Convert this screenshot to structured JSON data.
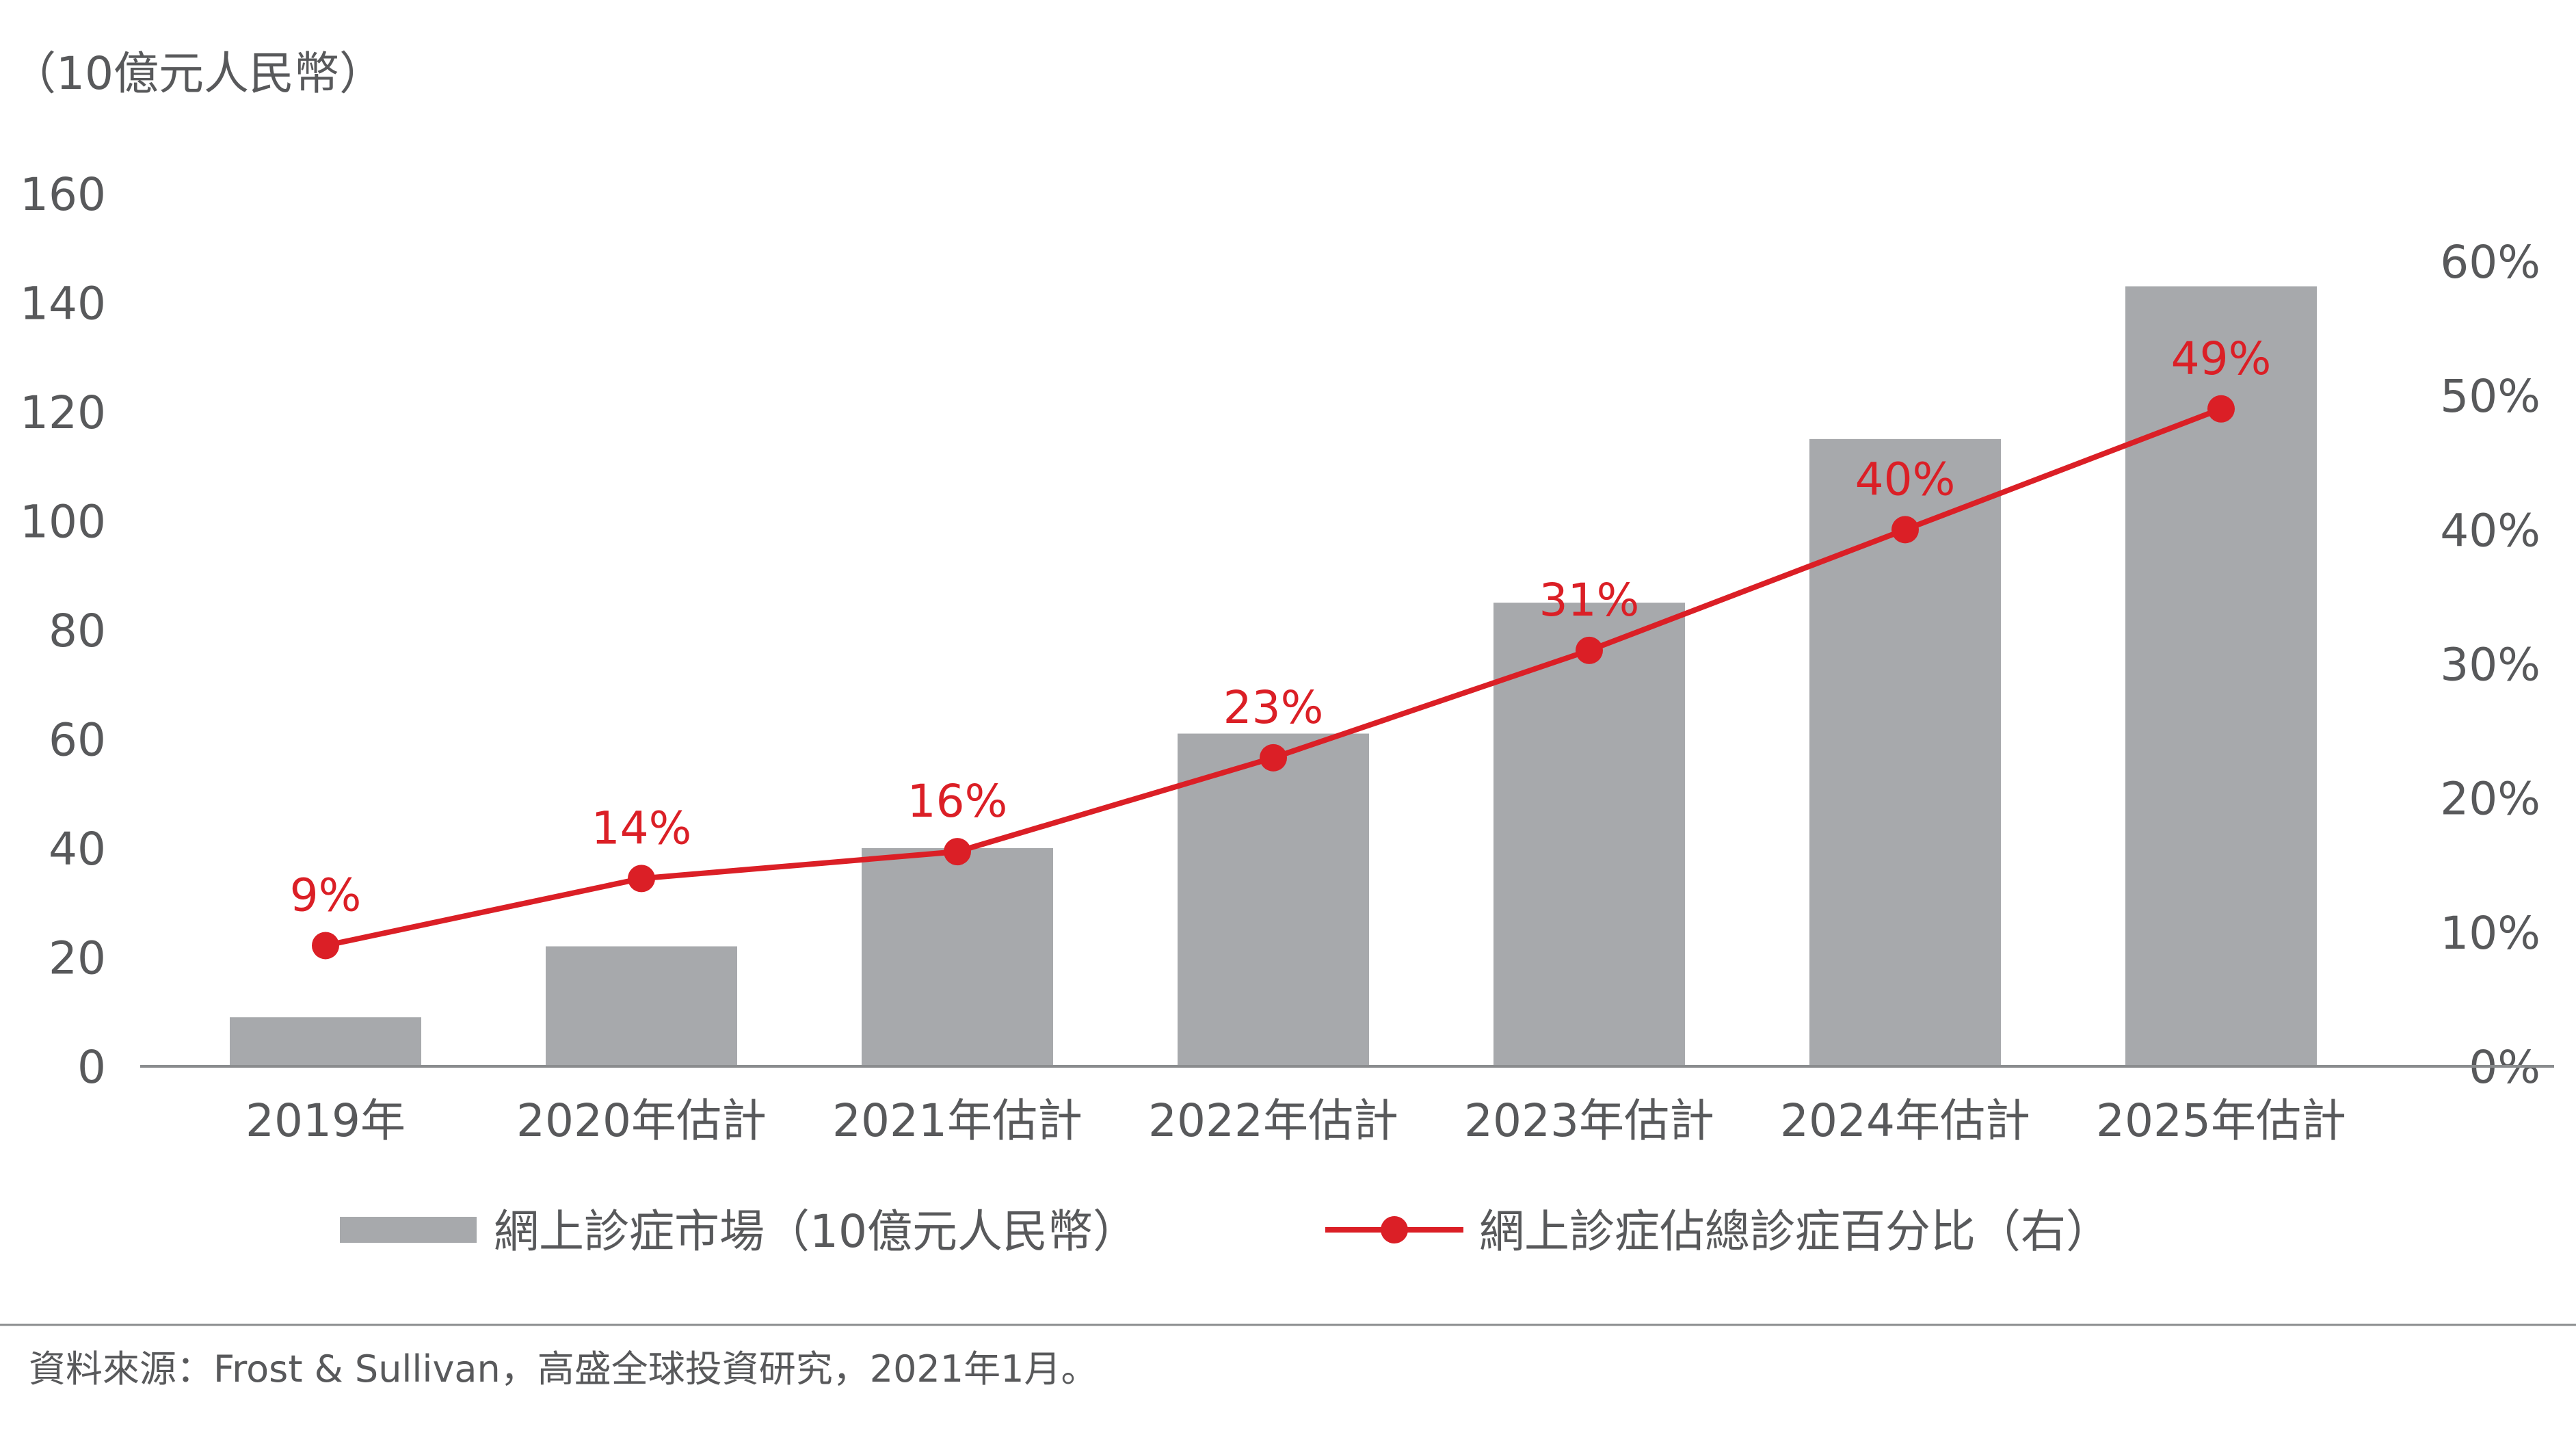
{
  "chart_data": {
    "type": "bar",
    "ylabel": "（10億元人民幣）",
    "categories": [
      "2019年",
      "2020年估計",
      "2021年估計",
      "2022年估計",
      "2023年估計",
      "2024年估計",
      "2025年估計"
    ],
    "ylim": [
      0,
      160
    ],
    "yticks": [
      "0",
      "20",
      "40",
      "60",
      "80",
      "100",
      "120",
      "140",
      "160"
    ],
    "y2lim": [
      0,
      0.6
    ],
    "y2ticks": [
      "0%",
      "10%",
      "20%",
      "30%",
      "40%",
      "50%",
      "60%"
    ],
    "series": [
      {
        "name": "網上診症市場（10億元人民幣）",
        "type": "bar",
        "axis": "left",
        "color": "#a7a9ac",
        "values": [
          9,
          22,
          40,
          61,
          85,
          115,
          143
        ]
      },
      {
        "name": "網上診症佔總診症百分比（右）",
        "type": "line",
        "axis": "right",
        "color": "#db1f26",
        "values": [
          0.09,
          0.14,
          0.16,
          0.23,
          0.31,
          0.4,
          0.49
        ],
        "data_labels": [
          "9%",
          "14%",
          "16%",
          "23%",
          "31%",
          "40%",
          "49%"
        ]
      }
    ],
    "legend_position": "bottom",
    "grid": false
  },
  "footer": {
    "source": "資料來源：Frost & Sullivan，高盛全球投資研究，2021年1月。"
  }
}
